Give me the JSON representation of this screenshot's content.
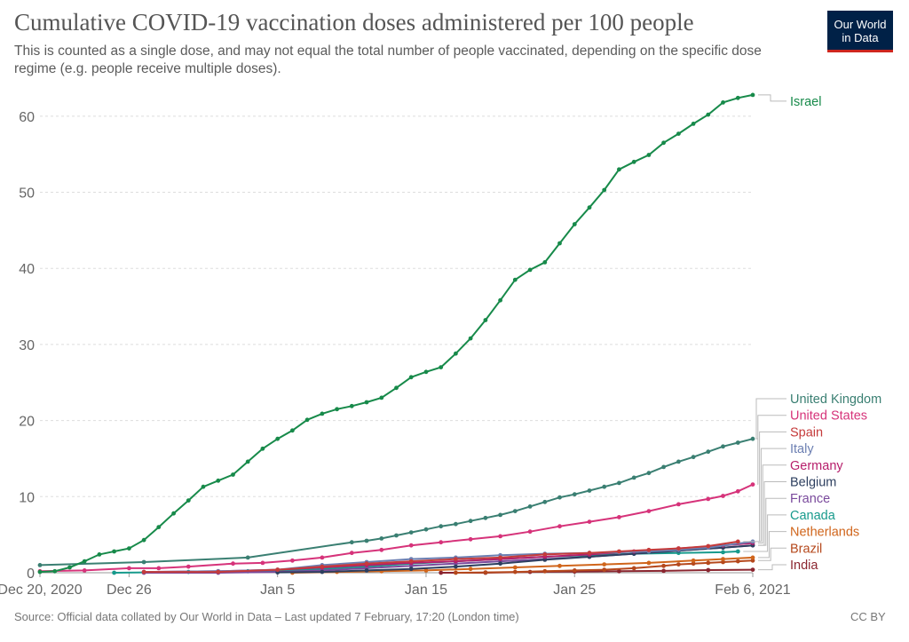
{
  "header": {
    "title": "Cumulative COVID-19 vaccination doses administered per 100 people",
    "subtitle": "This is counted as a single dose, and may not equal the total number of people vaccinated, depending on the specific dose regime (e.g. people receive multiple doses)."
  },
  "logo": {
    "line1": "Our World",
    "line2": "in Data",
    "bg": "#002147",
    "accent": "#ce261e"
  },
  "footer": {
    "source": "Source: Official data collated by Our World in Data – Last updated 7 February, 17:20 (London time)",
    "license": "CC BY"
  },
  "chart_data": {
    "type": "line",
    "title": "Cumulative COVID-19 vaccination doses administered per 100 people",
    "x_start": "2020-12-20",
    "x_end": "2021-02-06",
    "x_ticks": [
      {
        "date": "2020-12-20",
        "label": "Dec 20, 2020"
      },
      {
        "date": "2020-12-26",
        "label": "Dec 26"
      },
      {
        "date": "2021-01-05",
        "label": "Jan 5"
      },
      {
        "date": "2021-01-15",
        "label": "Jan 15"
      },
      {
        "date": "2021-01-25",
        "label": "Jan 25"
      },
      {
        "date": "2021-02-06",
        "label": "Feb 6, 2021"
      }
    ],
    "ylim": [
      0,
      65
    ],
    "y_ticks": [
      0,
      10,
      20,
      30,
      40,
      50,
      60
    ],
    "grid": true,
    "legend": "right (line-end labels)",
    "series": [
      {
        "name": "Israel",
        "color": "#178a4a",
        "points": [
          [
            "2020-12-20",
            0.1
          ],
          [
            "2020-12-21",
            0.2
          ],
          [
            "2020-12-22",
            0.7
          ],
          [
            "2020-12-23",
            1.5
          ],
          [
            "2020-12-24",
            2.4
          ],
          [
            "2020-12-25",
            2.8
          ],
          [
            "2020-12-26",
            3.2
          ],
          [
            "2020-12-27",
            4.3
          ],
          [
            "2020-12-28",
            6.0
          ],
          [
            "2020-12-29",
            7.8
          ],
          [
            "2020-12-30",
            9.5
          ],
          [
            "2020-12-31",
            11.3
          ],
          [
            "2021-01-01",
            12.1
          ],
          [
            "2021-01-02",
            12.9
          ],
          [
            "2021-01-03",
            14.6
          ],
          [
            "2021-01-04",
            16.3
          ],
          [
            "2021-01-05",
            17.6
          ],
          [
            "2021-01-06",
            18.7
          ],
          [
            "2021-01-07",
            20.1
          ],
          [
            "2021-01-08",
            20.9
          ],
          [
            "2021-01-09",
            21.5
          ],
          [
            "2021-01-10",
            21.9
          ],
          [
            "2021-01-11",
            22.4
          ],
          [
            "2021-01-12",
            23.0
          ],
          [
            "2021-01-13",
            24.3
          ],
          [
            "2021-01-14",
            25.7
          ],
          [
            "2021-01-15",
            26.4
          ],
          [
            "2021-01-16",
            27.0
          ],
          [
            "2021-01-17",
            28.8
          ],
          [
            "2021-01-18",
            30.8
          ],
          [
            "2021-01-19",
            33.2
          ],
          [
            "2021-01-20",
            35.8
          ],
          [
            "2021-01-21",
            38.5
          ],
          [
            "2021-01-22",
            39.8
          ],
          [
            "2021-01-23",
            40.8
          ],
          [
            "2021-01-24",
            43.3
          ],
          [
            "2021-01-25",
            45.8
          ],
          [
            "2021-01-26",
            48.0
          ],
          [
            "2021-01-27",
            50.3
          ],
          [
            "2021-01-28",
            53.0
          ],
          [
            "2021-01-29",
            54.0
          ],
          [
            "2021-01-30",
            54.9
          ],
          [
            "2021-01-31",
            56.5
          ],
          [
            "2021-02-01",
            57.7
          ],
          [
            "2021-02-02",
            59.0
          ],
          [
            "2021-02-03",
            60.2
          ],
          [
            "2021-02-04",
            61.8
          ],
          [
            "2021-02-05",
            62.4
          ],
          [
            "2021-02-06",
            62.8
          ]
        ]
      },
      {
        "name": "United Kingdom",
        "color": "#3a7f72",
        "points": [
          [
            "2020-12-20",
            1.0
          ],
          [
            "2020-12-27",
            1.4
          ],
          [
            "2021-01-03",
            2.0
          ],
          [
            "2021-01-10",
            4.0
          ],
          [
            "2021-01-11",
            4.2
          ],
          [
            "2021-01-12",
            4.5
          ],
          [
            "2021-01-13",
            4.9
          ],
          [
            "2021-01-14",
            5.3
          ],
          [
            "2021-01-15",
            5.7
          ],
          [
            "2021-01-16",
            6.1
          ],
          [
            "2021-01-17",
            6.4
          ],
          [
            "2021-01-18",
            6.8
          ],
          [
            "2021-01-19",
            7.2
          ],
          [
            "2021-01-20",
            7.6
          ],
          [
            "2021-01-21",
            8.1
          ],
          [
            "2021-01-22",
            8.7
          ],
          [
            "2021-01-23",
            9.3
          ],
          [
            "2021-01-24",
            9.9
          ],
          [
            "2021-01-25",
            10.3
          ],
          [
            "2021-01-26",
            10.8
          ],
          [
            "2021-01-27",
            11.3
          ],
          [
            "2021-01-28",
            11.8
          ],
          [
            "2021-01-29",
            12.5
          ],
          [
            "2021-01-30",
            13.1
          ],
          [
            "2021-01-31",
            13.9
          ],
          [
            "2021-02-01",
            14.6
          ],
          [
            "2021-02-02",
            15.2
          ],
          [
            "2021-02-03",
            15.9
          ],
          [
            "2021-02-04",
            16.6
          ],
          [
            "2021-02-05",
            17.1
          ],
          [
            "2021-02-06",
            17.6
          ]
        ]
      },
      {
        "name": "United States",
        "color": "#d6337a",
        "points": [
          [
            "2020-12-20",
            0.2
          ],
          [
            "2020-12-23",
            0.3
          ],
          [
            "2020-12-26",
            0.6
          ],
          [
            "2020-12-28",
            0.6
          ],
          [
            "2020-12-30",
            0.8
          ],
          [
            "2021-01-02",
            1.2
          ],
          [
            "2021-01-04",
            1.3
          ],
          [
            "2021-01-06",
            1.6
          ],
          [
            "2021-01-08",
            2.0
          ],
          [
            "2021-01-10",
            2.6
          ],
          [
            "2021-01-12",
            3.0
          ],
          [
            "2021-01-14",
            3.6
          ],
          [
            "2021-01-16",
            4.0
          ],
          [
            "2021-01-18",
            4.4
          ],
          [
            "2021-01-20",
            4.8
          ],
          [
            "2021-01-22",
            5.4
          ],
          [
            "2021-01-24",
            6.1
          ],
          [
            "2021-01-26",
            6.7
          ],
          [
            "2021-01-28",
            7.3
          ],
          [
            "2021-01-30",
            8.1
          ],
          [
            "2021-02-01",
            9.0
          ],
          [
            "2021-02-03",
            9.7
          ],
          [
            "2021-02-04",
            10.1
          ],
          [
            "2021-02-05",
            10.7
          ],
          [
            "2021-02-06",
            11.6
          ]
        ]
      },
      {
        "name": "Spain",
        "color": "#c53b3b",
        "points": [
          [
            "2020-12-27",
            0.1
          ],
          [
            "2021-01-01",
            0.1
          ],
          [
            "2021-01-05",
            0.4
          ],
          [
            "2021-01-08",
            0.8
          ],
          [
            "2021-01-11",
            1.2
          ],
          [
            "2021-01-14",
            1.5
          ],
          [
            "2021-01-17",
            1.8
          ],
          [
            "2021-01-20",
            2.0
          ],
          [
            "2021-01-23",
            2.4
          ],
          [
            "2021-01-26",
            2.6
          ],
          [
            "2021-01-28",
            2.8
          ],
          [
            "2021-01-30",
            3.0
          ],
          [
            "2021-02-01",
            3.2
          ],
          [
            "2021-02-03",
            3.5
          ],
          [
            "2021-02-05",
            4.1
          ]
        ]
      },
      {
        "name": "Italy",
        "color": "#6c7fb2",
        "points": [
          [
            "2020-12-27",
            0.1
          ],
          [
            "2021-01-01",
            0.2
          ],
          [
            "2021-01-05",
            0.4
          ],
          [
            "2021-01-08",
            1.0
          ],
          [
            "2021-01-11",
            1.4
          ],
          [
            "2021-01-14",
            1.8
          ],
          [
            "2021-01-17",
            2.0
          ],
          [
            "2021-01-20",
            2.3
          ],
          [
            "2021-01-23",
            2.5
          ],
          [
            "2021-01-26",
            2.6
          ],
          [
            "2021-01-28",
            2.7
          ],
          [
            "2021-01-30",
            2.8
          ],
          [
            "2021-02-01",
            3.0
          ],
          [
            "2021-02-03",
            3.3
          ],
          [
            "2021-02-06",
            4.1
          ]
        ]
      },
      {
        "name": "Germany",
        "color": "#b61e6b",
        "points": [
          [
            "2020-12-27",
            0.1
          ],
          [
            "2021-01-01",
            0.2
          ],
          [
            "2021-01-05",
            0.4
          ],
          [
            "2021-01-08",
            0.7
          ],
          [
            "2021-01-11",
            1.0
          ],
          [
            "2021-01-14",
            1.3
          ],
          [
            "2021-01-17",
            1.5
          ],
          [
            "2021-01-20",
            1.8
          ],
          [
            "2021-01-23",
            2.1
          ],
          [
            "2021-01-26",
            2.4
          ],
          [
            "2021-01-29",
            2.8
          ],
          [
            "2021-02-01",
            3.2
          ],
          [
            "2021-02-04",
            3.6
          ],
          [
            "2021-02-06",
            3.9
          ]
        ]
      },
      {
        "name": "Belgium",
        "color": "#2d3f5f",
        "points": [
          [
            "2021-01-05",
            0.05
          ],
          [
            "2021-01-08",
            0.1
          ],
          [
            "2021-01-11",
            0.3
          ],
          [
            "2021-01-14",
            0.5
          ],
          [
            "2021-01-17",
            0.8
          ],
          [
            "2021-01-20",
            1.2
          ],
          [
            "2021-01-23",
            1.7
          ],
          [
            "2021-01-26",
            2.1
          ],
          [
            "2021-01-29",
            2.5
          ],
          [
            "2021-02-01",
            2.9
          ],
          [
            "2021-02-04",
            3.3
          ],
          [
            "2021-02-06",
            3.6
          ]
        ]
      },
      {
        "name": "France",
        "color": "#7a4a9c",
        "points": [
          [
            "2020-12-27",
            0.0
          ],
          [
            "2021-01-01",
            0.0
          ],
          [
            "2021-01-05",
            0.1
          ],
          [
            "2021-01-08",
            0.3
          ],
          [
            "2021-01-11",
            0.6
          ],
          [
            "2021-01-14",
            0.9
          ],
          [
            "2021-01-17",
            1.2
          ],
          [
            "2021-01-20",
            1.5
          ],
          [
            "2021-01-23",
            1.8
          ],
          [
            "2021-01-26",
            2.1
          ],
          [
            "2021-01-29",
            2.5
          ],
          [
            "2021-02-01",
            2.9
          ],
          [
            "2021-02-04",
            3.3
          ],
          [
            "2021-02-06",
            3.6
          ]
        ]
      },
      {
        "name": "Canada",
        "color": "#179a8c",
        "points": [
          [
            "2020-12-25",
            0.0
          ],
          [
            "2020-12-30",
            0.1
          ],
          [
            "2021-01-03",
            0.2
          ],
          [
            "2021-01-07",
            0.4
          ],
          [
            "2021-01-11",
            0.8
          ],
          [
            "2021-01-14",
            1.2
          ],
          [
            "2021-01-17",
            1.5
          ],
          [
            "2021-01-20",
            1.8
          ],
          [
            "2021-01-23",
            2.1
          ],
          [
            "2021-01-26",
            2.3
          ],
          [
            "2021-01-29",
            2.5
          ],
          [
            "2021-02-01",
            2.6
          ],
          [
            "2021-02-04",
            2.7
          ],
          [
            "2021-02-05",
            2.8
          ]
        ]
      },
      {
        "name": "Netherlands",
        "color": "#d0651b",
        "points": [
          [
            "2021-01-06",
            0.0
          ],
          [
            "2021-01-09",
            0.1
          ],
          [
            "2021-01-12",
            0.2
          ],
          [
            "2021-01-15",
            0.3
          ],
          [
            "2021-01-18",
            0.5
          ],
          [
            "2021-01-21",
            0.7
          ],
          [
            "2021-01-24",
            0.9
          ],
          [
            "2021-01-27",
            1.1
          ],
          [
            "2021-01-30",
            1.3
          ],
          [
            "2021-02-02",
            1.6
          ],
          [
            "2021-02-04",
            1.8
          ],
          [
            "2021-02-06",
            2.0
          ]
        ]
      },
      {
        "name": "Brazil",
        "color": "#b5481c",
        "points": [
          [
            "2021-01-17",
            0.0
          ],
          [
            "2021-01-19",
            0.05
          ],
          [
            "2021-01-21",
            0.1
          ],
          [
            "2021-01-23",
            0.2
          ],
          [
            "2021-01-25",
            0.3
          ],
          [
            "2021-01-27",
            0.4
          ],
          [
            "2021-01-29",
            0.6
          ],
          [
            "2021-01-31",
            0.9
          ],
          [
            "2021-02-01",
            1.1
          ],
          [
            "2021-02-02",
            1.2
          ],
          [
            "2021-02-03",
            1.3
          ],
          [
            "2021-02-04",
            1.4
          ],
          [
            "2021-02-05",
            1.5
          ],
          [
            "2021-02-06",
            1.6
          ]
        ]
      },
      {
        "name": "India",
        "color": "#8b2630",
        "points": [
          [
            "2021-01-16",
            0.0
          ],
          [
            "2021-01-19",
            0.0
          ],
          [
            "2021-01-22",
            0.1
          ],
          [
            "2021-01-25",
            0.15
          ],
          [
            "2021-01-28",
            0.2
          ],
          [
            "2021-01-31",
            0.25
          ],
          [
            "2021-02-03",
            0.35
          ],
          [
            "2021-02-06",
            0.4
          ]
        ]
      }
    ]
  }
}
